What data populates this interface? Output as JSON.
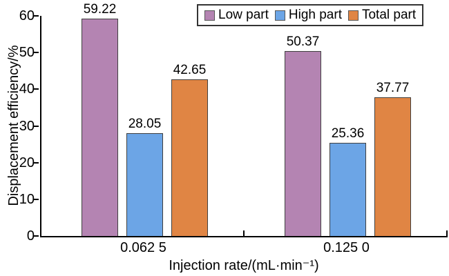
{
  "chart_data": {
    "type": "bar",
    "title": "",
    "xlabel": "Injection rate/(mL·min⁻¹)",
    "ylabel": "Displacement efficiency/%",
    "categories": [
      "0.062 5",
      "0.125 0"
    ],
    "series": [
      {
        "name": "Low part",
        "color": "#b484b2",
        "values": [
          59.22,
          50.37
        ]
      },
      {
        "name": "High part",
        "color": "#6ca5e6",
        "values": [
          28.05,
          25.36
        ]
      },
      {
        "name": "Total part",
        "color": "#e08544",
        "values": [
          42.65,
          37.77
        ]
      }
    ],
    "ylim": [
      0,
      60
    ],
    "yticks": [
      0,
      10,
      20,
      30,
      40,
      50,
      60
    ],
    "grid": false,
    "legend_position": "top-right",
    "bar_value_labels": true,
    "value_label_format": "2dp"
  }
}
